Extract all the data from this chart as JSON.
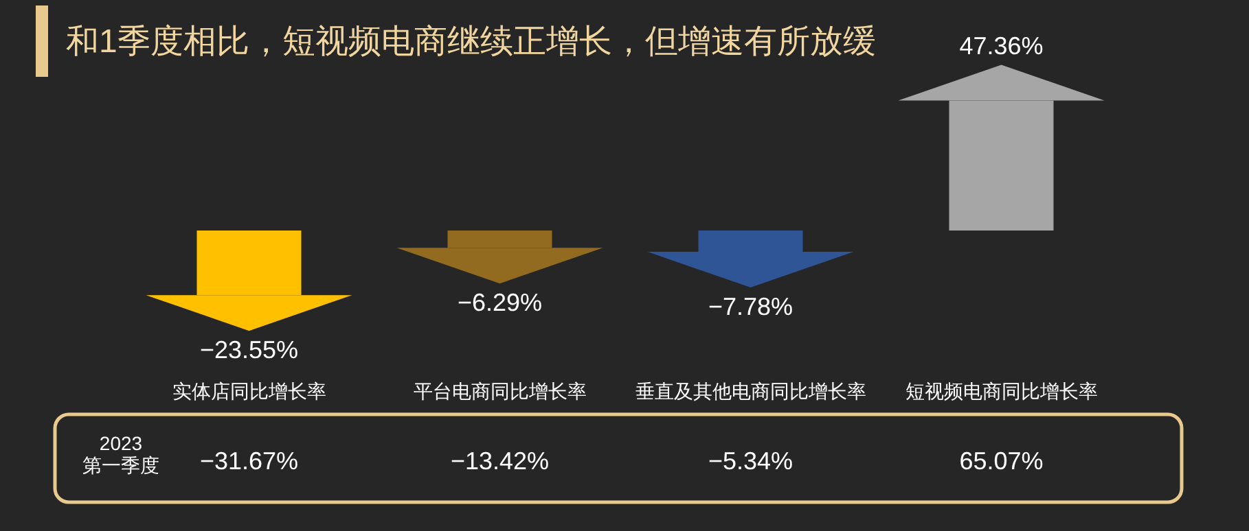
{
  "chart_data": {
    "type": "bar",
    "title": "和1季度相比，短视频电商继续正增长，但增速有所放缓",
    "categories": [
      "实体店同比增长率",
      "平台电商同比增长率",
      "垂直及其他电商同比增长率",
      "短视频电商同比增长率"
    ],
    "values": [
      -23.55,
      -6.29,
      -7.78,
      47.36
    ],
    "colors": [
      "#ffc000",
      "#936b20",
      "#2f5597",
      "#a6a6a6"
    ],
    "value_labels": [
      "−23.55%",
      "−6.29%",
      "−7.78%",
      "47.36%"
    ],
    "relative": false,
    "annotations": [
      "2023\n第一季度",
      "−31.67%",
      "−13.42%",
      "−5.34%",
      "65.07%"
    ]
  }
}
